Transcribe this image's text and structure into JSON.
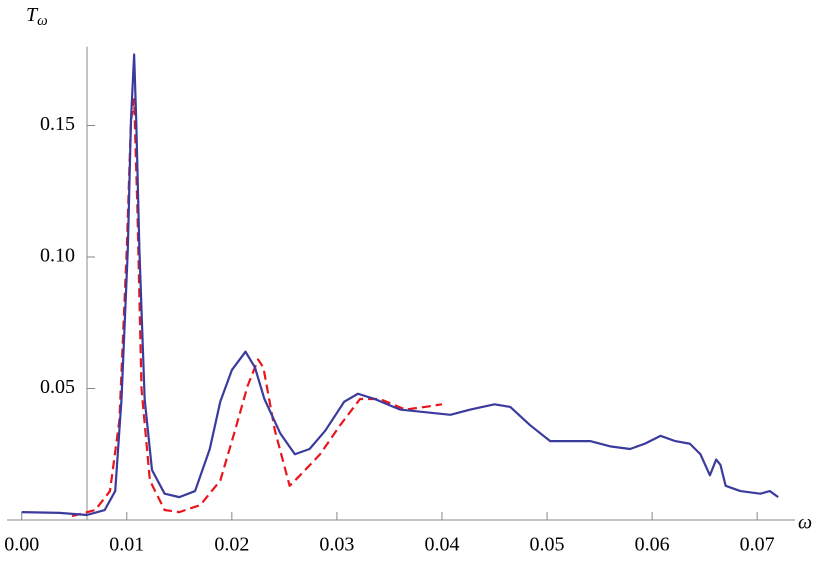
{
  "chart_data": {
    "type": "line",
    "xlabel": "ω",
    "ylabel": "T",
    "ylabel_subscript": "ω",
    "xlim": [
      -0.0014,
      0.0736
    ],
    "ylim": [
      0,
      0.18
    ],
    "xticks": [
      {
        "value": 0,
        "label": "0.00"
      },
      0.01,
      0.02,
      0.03,
      0.04,
      0.05,
      0.06,
      0.07
    ],
    "yticks": [
      0.05,
      {
        "value": 0.1,
        "label": "0.10"
      },
      0.15
    ],
    "grid": false,
    "series": [
      {
        "color": "#3b3b9e",
        "dash": false,
        "x": [
          0,
          0.0036,
          0.0062,
          0.0079,
          0.0089,
          0.0095,
          0.0101,
          0.0104,
          0.0107,
          0.0109,
          0.0112,
          0.0117,
          0.0124,
          0.0136,
          0.015,
          0.0165,
          0.0179,
          0.0189,
          0.02,
          0.0213,
          0.0222,
          0.0231,
          0.0246,
          0.026,
          0.0274,
          0.0289,
          0.0307,
          0.032,
          0.0336,
          0.036,
          0.0384,
          0.0408,
          0.0427,
          0.045,
          0.0465,
          0.0484,
          0.0503,
          0.0522,
          0.0541,
          0.056,
          0.0579,
          0.0593,
          0.0608,
          0.0622,
          0.0636,
          0.0646,
          0.0655,
          0.0661,
          0.0665,
          0.067,
          0.0684,
          0.0703,
          0.0712,
          0.072
        ],
        "values": [
          0.003,
          0.0027,
          0.0019,
          0.0038,
          0.011,
          0.046,
          0.103,
          0.152,
          0.177,
          0.152,
          0.103,
          0.046,
          0.019,
          0.01,
          0.0087,
          0.011,
          0.027,
          0.045,
          0.057,
          0.064,
          0.058,
          0.046,
          0.033,
          0.025,
          0.027,
          0.034,
          0.045,
          0.048,
          0.046,
          0.042,
          0.041,
          0.04,
          0.042,
          0.044,
          0.043,
          0.036,
          0.03,
          0.03,
          0.03,
          0.028,
          0.027,
          0.029,
          0.032,
          0.03,
          0.029,
          0.025,
          0.017,
          0.023,
          0.021,
          0.013,
          0.011,
          0.01,
          0.011,
          0.0087
        ]
      },
      {
        "color": "#e8151b",
        "dash": true,
        "x": [
          0.0048,
          0.007,
          0.0084,
          0.0093,
          0.01,
          0.0104,
          0.0107,
          0.011,
          0.0114,
          0.0122,
          0.0136,
          0.015,
          0.017,
          0.0189,
          0.0203,
          0.0215,
          0.0225,
          0.023,
          0.0241,
          0.0255,
          0.0265,
          0.0284,
          0.0303,
          0.0322,
          0.0341,
          0.0365,
          0.0384,
          0.04
        ],
        "values": [
          0.0015,
          0.0038,
          0.011,
          0.038,
          0.103,
          0.152,
          0.16,
          0.12,
          0.05,
          0.015,
          0.0038,
          0.003,
          0.0057,
          0.015,
          0.034,
          0.051,
          0.061,
          0.058,
          0.034,
          0.013,
          0.017,
          0.025,
          0.036,
          0.046,
          0.046,
          0.042,
          0.043,
          0.044
        ]
      }
    ]
  }
}
